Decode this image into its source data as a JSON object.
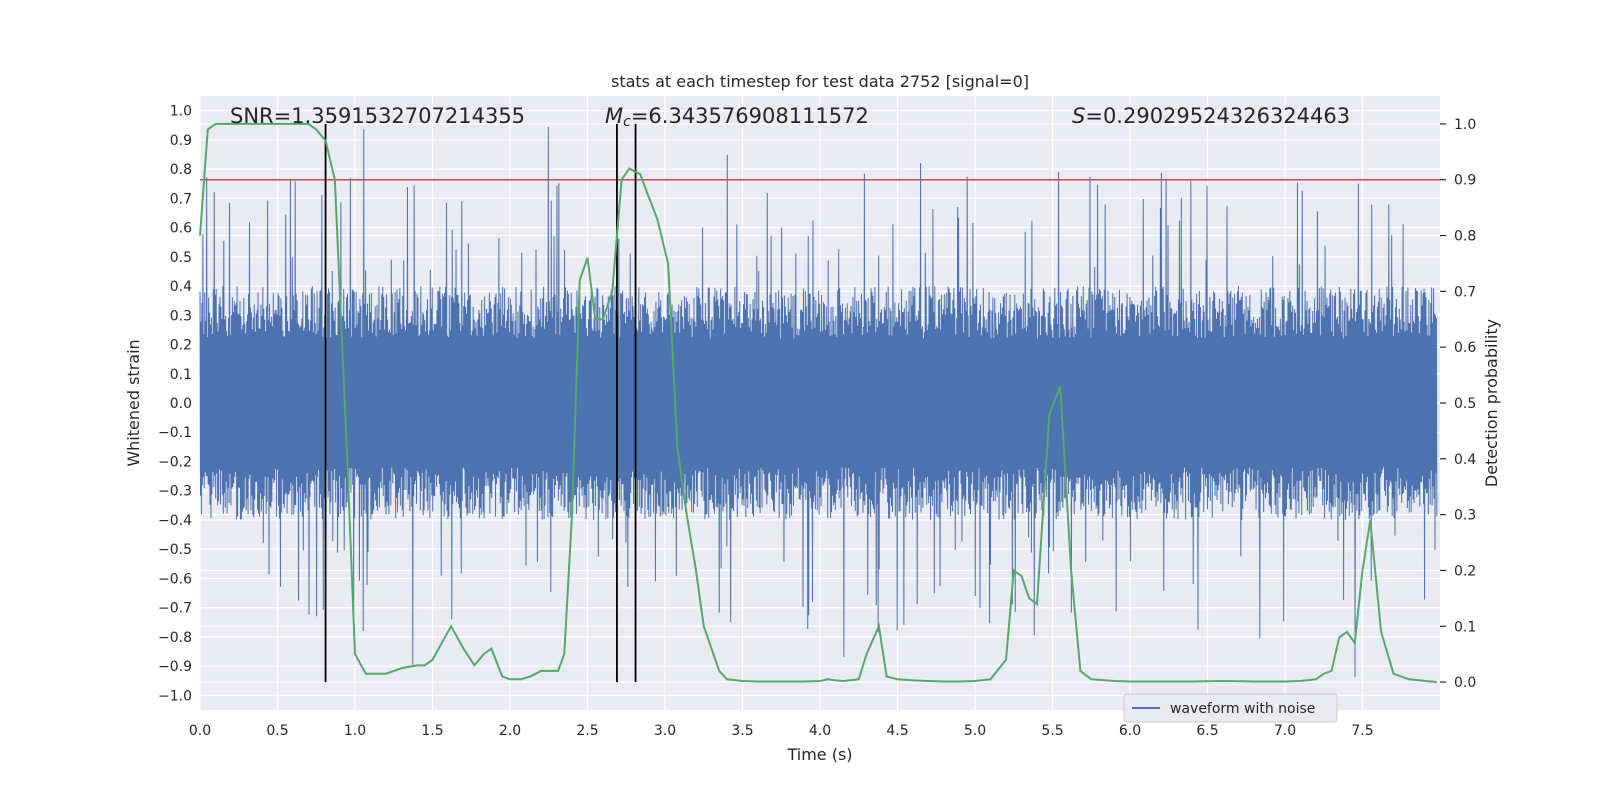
{
  "chart_data": {
    "type": "line",
    "title": "stats at each timestep for test data 2752 [signal=0]",
    "xlabel": "Time (s)",
    "ylabel": "Whitened strain",
    "y2label": "Detection probability",
    "xlim": [
      0.0,
      8.0
    ],
    "ylim": [
      -1.05,
      1.05
    ],
    "y2lim": [
      -0.05,
      1.05
    ],
    "xticks": [
      0.0,
      0.5,
      1.0,
      1.5,
      2.0,
      2.5,
      3.0,
      3.5,
      4.0,
      4.5,
      5.0,
      5.5,
      6.0,
      6.5,
      7.0,
      7.5
    ],
    "xtick_labels": [
      "0.0",
      "0.5",
      "1.0",
      "1.5",
      "2.0",
      "2.5",
      "3.0",
      "3.5",
      "4.0",
      "4.5",
      "5.0",
      "5.5",
      "6.0",
      "6.5",
      "7.0",
      "7.5"
    ],
    "yticks": [
      1.0,
      0.9,
      0.8,
      0.7,
      0.6,
      0.5,
      0.4,
      0.3,
      0.2,
      0.1,
      0.0,
      -0.1,
      -0.2,
      -0.3,
      -0.4,
      -0.5,
      -0.6,
      -0.7,
      -0.8,
      -0.9,
      -1.0
    ],
    "ytick_labels": [
      "1.0",
      "0.9",
      "0.8",
      "0.7",
      "0.6",
      "0.5",
      "0.4",
      "0.3",
      "0.2",
      "0.1",
      "0.0",
      "−0.1",
      "−0.2",
      "−0.3",
      "−0.4",
      "−0.5",
      "−0.6",
      "−0.7",
      "−0.8",
      "−0.9",
      "−1.0"
    ],
    "y2ticks": [
      1.0,
      0.9,
      0.8,
      0.7,
      0.6,
      0.5,
      0.4,
      0.3,
      0.2,
      0.1,
      0.0
    ],
    "y2tick_labels": [
      "1.0",
      "0.9",
      "0.8",
      "0.7",
      "0.6",
      "0.5",
      "0.4",
      "0.3",
      "0.2",
      "0.1",
      "0.0"
    ],
    "annotations": {
      "snr": "SNR=1.3591532707214355",
      "mc_symbol": "M",
      "mc_sub": "c",
      "mc_value": "=6.343576908111572",
      "s_symbol": "S",
      "s_value": "=0.29029524326324463"
    },
    "threshold_y2": 0.9,
    "vlines_x": [
      0.81,
      2.69,
      2.81
    ],
    "legend": {
      "label": "waveform with noise",
      "placement": "lower-right"
    },
    "waveform": {
      "name": "waveform with noise",
      "color": "#4c72b0",
      "duration": 7.98,
      "envelope": 0.4,
      "seed": 2752
    },
    "series": [
      {
        "name": "detection probability",
        "axis": "y2",
        "color": "#55a868",
        "x": [
          0.0,
          0.05,
          0.1,
          0.2,
          0.3,
          0.4,
          0.5,
          0.6,
          0.7,
          0.75,
          0.81,
          0.87,
          0.95,
          1.0,
          1.07,
          1.2,
          1.3,
          1.4,
          1.45,
          1.5,
          1.56,
          1.62,
          1.7,
          1.77,
          1.83,
          1.88,
          1.95,
          2.0,
          2.07,
          2.13,
          2.2,
          2.26,
          2.31,
          2.35,
          2.4,
          2.45,
          2.5,
          2.55,
          2.6,
          2.66,
          2.72,
          2.77,
          2.84,
          2.88,
          2.95,
          3.02,
          3.08,
          3.14,
          3.2,
          3.25,
          3.3,
          3.35,
          3.4,
          3.5,
          3.6,
          3.7,
          3.8,
          3.9,
          4.0,
          4.05,
          4.1,
          4.15,
          4.25,
          4.3,
          4.38,
          4.43,
          4.5,
          4.6,
          4.7,
          4.8,
          4.9,
          5.0,
          5.1,
          5.2,
          5.25,
          5.3,
          5.35,
          5.4,
          5.48,
          5.55,
          5.62,
          5.68,
          5.75,
          5.9,
          6.0,
          6.2,
          6.4,
          6.6,
          6.8,
          7.0,
          7.1,
          7.2,
          7.25,
          7.3,
          7.35,
          7.4,
          7.45,
          7.5,
          7.55,
          7.62,
          7.7,
          7.8,
          7.98
        ],
        "y": [
          0.8,
          0.99,
          1.0,
          1.0,
          1.0,
          1.0,
          1.0,
          1.0,
          1.0,
          0.99,
          0.97,
          0.9,
          0.4,
          0.05,
          0.015,
          0.015,
          0.025,
          0.03,
          0.03,
          0.04,
          0.07,
          0.1,
          0.06,
          0.03,
          0.05,
          0.06,
          0.01,
          0.005,
          0.005,
          0.01,
          0.02,
          0.02,
          0.02,
          0.05,
          0.3,
          0.72,
          0.76,
          0.65,
          0.65,
          0.7,
          0.9,
          0.92,
          0.91,
          0.88,
          0.83,
          0.75,
          0.42,
          0.3,
          0.2,
          0.1,
          0.06,
          0.02,
          0.005,
          0.002,
          0.001,
          0.001,
          0.001,
          0.001,
          0.002,
          0.005,
          0.003,
          0.002,
          0.005,
          0.05,
          0.1,
          0.01,
          0.005,
          0.003,
          0.002,
          0.001,
          0.001,
          0.002,
          0.005,
          0.04,
          0.2,
          0.19,
          0.15,
          0.14,
          0.48,
          0.53,
          0.2,
          0.02,
          0.005,
          0.002,
          0.001,
          0.001,
          0.001,
          0.002,
          0.001,
          0.001,
          0.002,
          0.005,
          0.015,
          0.02,
          0.08,
          0.09,
          0.07,
          0.2,
          0.29,
          0.09,
          0.015,
          0.005,
          0.0
        ]
      }
    ]
  }
}
